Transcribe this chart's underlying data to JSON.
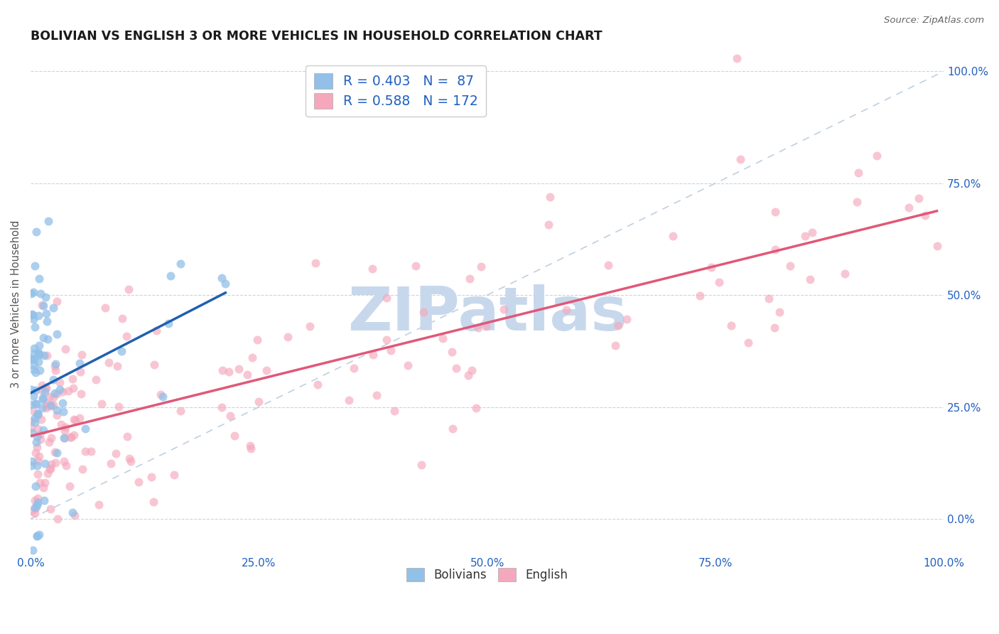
{
  "title": "BOLIVIAN VS ENGLISH 3 OR MORE VEHICLES IN HOUSEHOLD CORRELATION CHART",
  "source_text": "Source: ZipAtlas.com",
  "ylabel": "3 or more Vehicles in Household",
  "bolivian_color": "#92c0e8",
  "bolivian_edge_color": "#92c0e8",
  "english_color": "#f5a8bc",
  "english_edge_color": "#f5a8bc",
  "bolivian_line_color": "#2060b0",
  "english_line_color": "#e05878",
  "legend_text_color": "#2060c0",
  "r_bolivian": 0.403,
  "n_bolivian": 87,
  "r_english": 0.588,
  "n_english": 172,
  "watermark_text": "ZIPatlas",
  "watermark_color": "#c8d8ec",
  "background_color": "#ffffff",
  "grid_color": "#c8d4e4",
  "tick_color": "#2060c0",
  "x_ticks": [
    0.0,
    0.25,
    0.5,
    0.75,
    1.0
  ],
  "y_ticks": [
    0.0,
    0.25,
    0.5,
    0.75,
    1.0
  ],
  "x_min": 0.0,
  "x_max": 1.0,
  "y_min": -0.08,
  "y_max": 1.04,
  "legend_labels": [
    "Bolivians",
    "English"
  ]
}
